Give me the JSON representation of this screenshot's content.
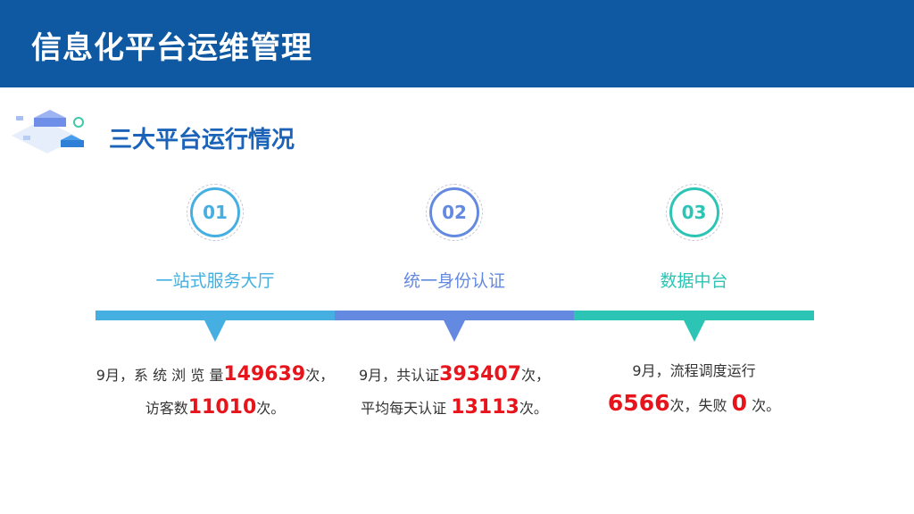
{
  "header": {
    "title": "信息化平台运维管理"
  },
  "section": {
    "title": "三大平台运行情况"
  },
  "platforms": [
    {
      "num": "01",
      "name": "一站式服务大厅",
      "color": "#45afe2",
      "l1a": "9月，系 统 浏 览 量",
      "l1n": "149639",
      "l1b": "次，",
      "l2a": "访客数",
      "l2n": "11010",
      "l2b": "次。"
    },
    {
      "num": "02",
      "name": "统一身份认证",
      "color": "#6489e0",
      "l1a": "9月，共认证",
      "l1n": "393407",
      "l1b": "次，",
      "l2a": "平均每天认证 ",
      "l2n": "13113",
      "l2b": "次。"
    },
    {
      "num": "03",
      "name": "数据中台",
      "color": "#2cc4b4",
      "l1a": "9月，流程调度运行",
      "l1n": "",
      "l1b": "",
      "l2a": "",
      "l2n": "6566",
      "l2b": "次，失败 ",
      "l2n2": "0",
      "l2c": " 次。"
    }
  ]
}
